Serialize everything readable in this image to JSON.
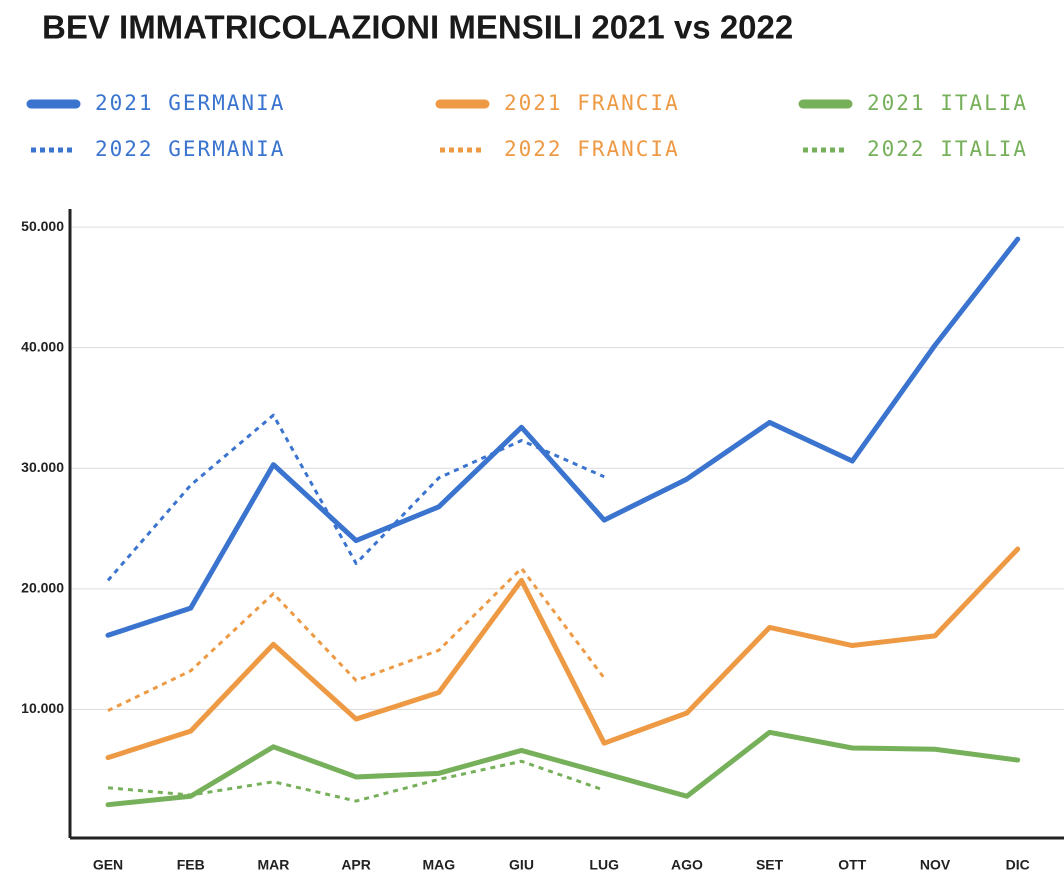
{
  "chart_data": {
    "type": "line",
    "title": "BEV IMMATRICOLAZIONI MENSILI 2021 vs 2022",
    "categories": [
      "GEN",
      "FEB",
      "MAR",
      "APR",
      "MAG",
      "GIU",
      "LUG",
      "AGO",
      "SET",
      "OTT",
      "NOV",
      "DIC"
    ],
    "ylim": [
      0,
      51500
    ],
    "yticks": [
      {
        "value": 10000,
        "label": "10.000"
      },
      {
        "value": 20000,
        "label": "20.000"
      },
      {
        "value": 30000,
        "label": "30.000"
      },
      {
        "value": 40000,
        "label": "40.000"
      },
      {
        "value": 50000,
        "label": "50.000"
      }
    ],
    "grid": true,
    "series": [
      {
        "name": "2021 GERMANIA",
        "color": "#3a74cf",
        "style": "solid",
        "values": [
          16150,
          18400,
          30300,
          24000,
          26800,
          33400,
          25700,
          29100,
          33800,
          30600,
          40200,
          49000
        ]
      },
      {
        "name": "2022 GERMANIA",
        "color": "#3a74cf",
        "style": "dotted",
        "values": [
          20700,
          28600,
          34400,
          22100,
          29200,
          32300,
          29300,
          null,
          null,
          null,
          null,
          null
        ]
      },
      {
        "name": "2021 FRANCIA",
        "color": "#ee9a45",
        "style": "solid",
        "values": [
          6000,
          8200,
          15400,
          9200,
          11400,
          20700,
          7200,
          9700,
          16800,
          15300,
          16100,
          23300
        ]
      },
      {
        "name": "2022 FRANCIA",
        "color": "#ee9a45",
        "style": "dotted",
        "values": [
          9900,
          13200,
          19600,
          12400,
          14900,
          21700,
          12600,
          null,
          null,
          null,
          null,
          null
        ]
      },
      {
        "name": "2021 ITALIA",
        "color": "#77b05a",
        "style": "solid",
        "values": [
          2100,
          2800,
          6900,
          4400,
          4700,
          6600,
          4700,
          2800,
          8100,
          6800,
          6700,
          5800
        ]
      },
      {
        "name": "2022 ITALIA",
        "color": "#77b05a",
        "style": "dotted",
        "values": [
          3500,
          2900,
          4000,
          2400,
          4200,
          5700,
          3300,
          null,
          null,
          null,
          null,
          null
        ]
      }
    ]
  }
}
